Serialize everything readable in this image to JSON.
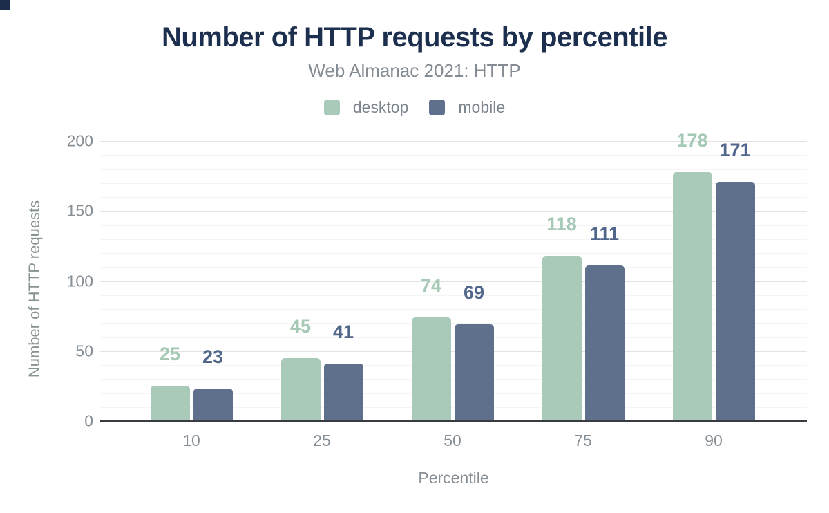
{
  "header": {
    "title": "Number of HTTP requests by percentile",
    "subtitle": "Web Almanac 2021: HTTP"
  },
  "chart_data": {
    "type": "bar",
    "title": "Number of HTTP requests by percentile",
    "subtitle": "Web Almanac 2021: HTTP",
    "categories": [
      "10",
      "25",
      "50",
      "75",
      "90"
    ],
    "series": [
      {
        "name": "desktop",
        "color": "#a9cab9",
        "label_color": "#a6c9b6",
        "values": [
          25,
          45,
          74,
          118,
          178
        ]
      },
      {
        "name": "mobile",
        "color": "#5e708c",
        "label_color": "#51668b",
        "values": [
          23,
          41,
          69,
          111,
          171
        ]
      }
    ],
    "xlabel": "Percentile",
    "ylabel": "Number of HTTP requests",
    "ylim": [
      0,
      200
    ],
    "yticks": [
      0,
      50,
      100,
      150,
      200
    ],
    "minor_grid_step": 10,
    "grid": true,
    "legend_position": "top",
    "data_labels": true,
    "colors": {
      "title": "#1d2f4e",
      "subtitle": "#848b93",
      "axis_text": "#878f96",
      "axis_line": "#383c42",
      "major_grid": "#e2e2e2",
      "minor_grid": "#f4f4f4"
    }
  }
}
